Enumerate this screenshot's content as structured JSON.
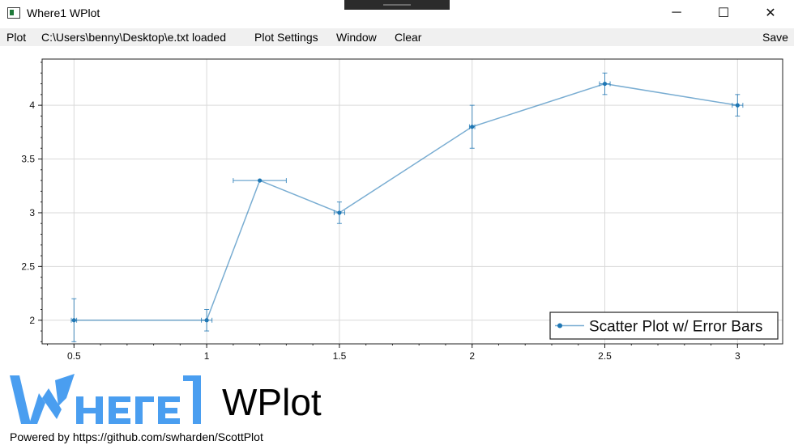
{
  "window": {
    "title": "Where1 WPlot",
    "minimize_glyph": "─",
    "maximize_glyph": "☐",
    "close_glyph": "✕"
  },
  "menu": {
    "plot": "Plot",
    "file_status": "C:\\Users\\benny\\Desktop\\e.txt loaded",
    "plot_settings": "Plot Settings",
    "window": "Window",
    "clear": "Clear",
    "save": "Save"
  },
  "chart_data": {
    "type": "scatter",
    "title": "",
    "xlabel": "",
    "ylabel": "",
    "xlim": [
      0.38,
      3.17
    ],
    "ylim": [
      1.78,
      4.43
    ],
    "xticks": [
      "0.5",
      "1",
      "1.5",
      "2",
      "2.5",
      "3"
    ],
    "yticks": [
      "2",
      "2.5",
      "3",
      "3.5",
      "4"
    ],
    "grid": true,
    "legend_position": "bottom-right",
    "series": [
      {
        "name": "Scatter Plot w/ Error Bars",
        "color": "#1f77b4",
        "points": [
          {
            "x": 0.5,
            "y": 2.0,
            "xerr": 0.01,
            "yerr": 0.2
          },
          {
            "x": 1.0,
            "y": 2.0,
            "xerr": 0.02,
            "yerr": 0.1
          },
          {
            "x": 1.2,
            "y": 3.3,
            "xerr": 0.1,
            "yerr": 0.0
          },
          {
            "x": 1.5,
            "y": 3.0,
            "xerr": 0.02,
            "yerr": 0.1
          },
          {
            "x": 2.0,
            "y": 3.8,
            "xerr": 0.01,
            "yerr": 0.2
          },
          {
            "x": 2.5,
            "y": 4.2,
            "xerr": 0.02,
            "yerr": 0.1
          },
          {
            "x": 3.0,
            "y": 4.0,
            "xerr": 0.02,
            "yerr": 0.1
          }
        ]
      }
    ]
  },
  "branding": {
    "logo_text": "WPlot",
    "logo_color": "#4a9ef0",
    "powered_by": "Powered by https://github.com/swharden/ScottPlot"
  }
}
